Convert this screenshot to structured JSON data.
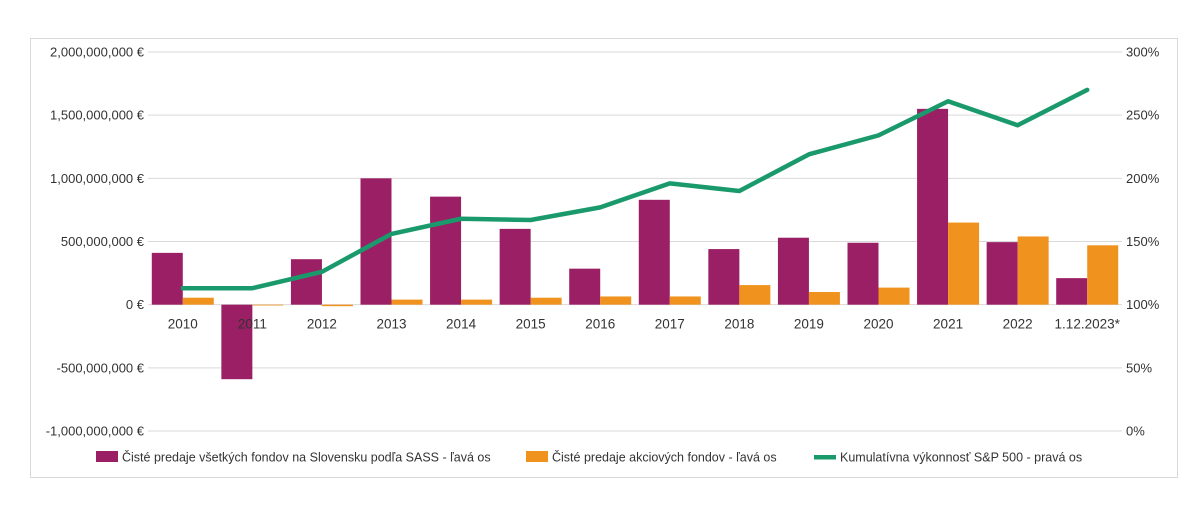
{
  "chart_data": {
    "type": "bar",
    "categories": [
      "2010",
      "2011",
      "2012",
      "2013",
      "2014",
      "2015",
      "2016",
      "2017",
      "2018",
      "2019",
      "2020",
      "2021",
      "2022",
      "1.12.2023*"
    ],
    "series": [
      {
        "name": "Čisté predaje všetkých fondov na Slovensku podľa SASS - ľavá os",
        "type": "bar",
        "axis": "left",
        "color": "#9b1f64",
        "values": [
          410000000,
          -590000000,
          360000000,
          1000000000,
          855000000,
          600000000,
          285000000,
          830000000,
          440000000,
          530000000,
          490000000,
          1550000000,
          495000000,
          210000000
        ]
      },
      {
        "name": "Čisté predaje akciových fondov - ľavá os",
        "type": "bar",
        "axis": "left",
        "color": "#f0921e",
        "values": [
          55000000,
          -3000000,
          -12000000,
          40000000,
          40000000,
          55000000,
          65000000,
          65000000,
          155000000,
          100000000,
          135000000,
          650000000,
          540000000,
          470000000
        ]
      },
      {
        "name": "Kumulatívna výkonnosť S&P 500 - pravá os",
        "type": "line",
        "axis": "right",
        "color": "#1a9a6c",
        "values": [
          113,
          113,
          126,
          156,
          168,
          167,
          177,
          196,
          190,
          219,
          234,
          261,
          242,
          270
        ]
      }
    ],
    "y_left": {
      "range": [
        -1000000000,
        2000000000
      ],
      "ticks": [
        -1000000000,
        -500000000,
        0,
        500000000,
        1000000000,
        1500000000,
        2000000000
      ],
      "tick_labels": [
        "-1,000,000,000 €",
        "-500,000,000 €",
        "0 €",
        "500,000,000 €",
        "1,000,000,000 €",
        "1,500,000,000 €",
        "2,000,000,000 €"
      ]
    },
    "y_right": {
      "range": [
        0,
        300
      ],
      "ticks": [
        0,
        50,
        100,
        150,
        200,
        250,
        300
      ],
      "tick_labels": [
        "0%",
        "50%",
        "100%",
        "150%",
        "200%",
        "250%",
        "300%"
      ]
    },
    "grid": true,
    "legend": "bottom"
  }
}
